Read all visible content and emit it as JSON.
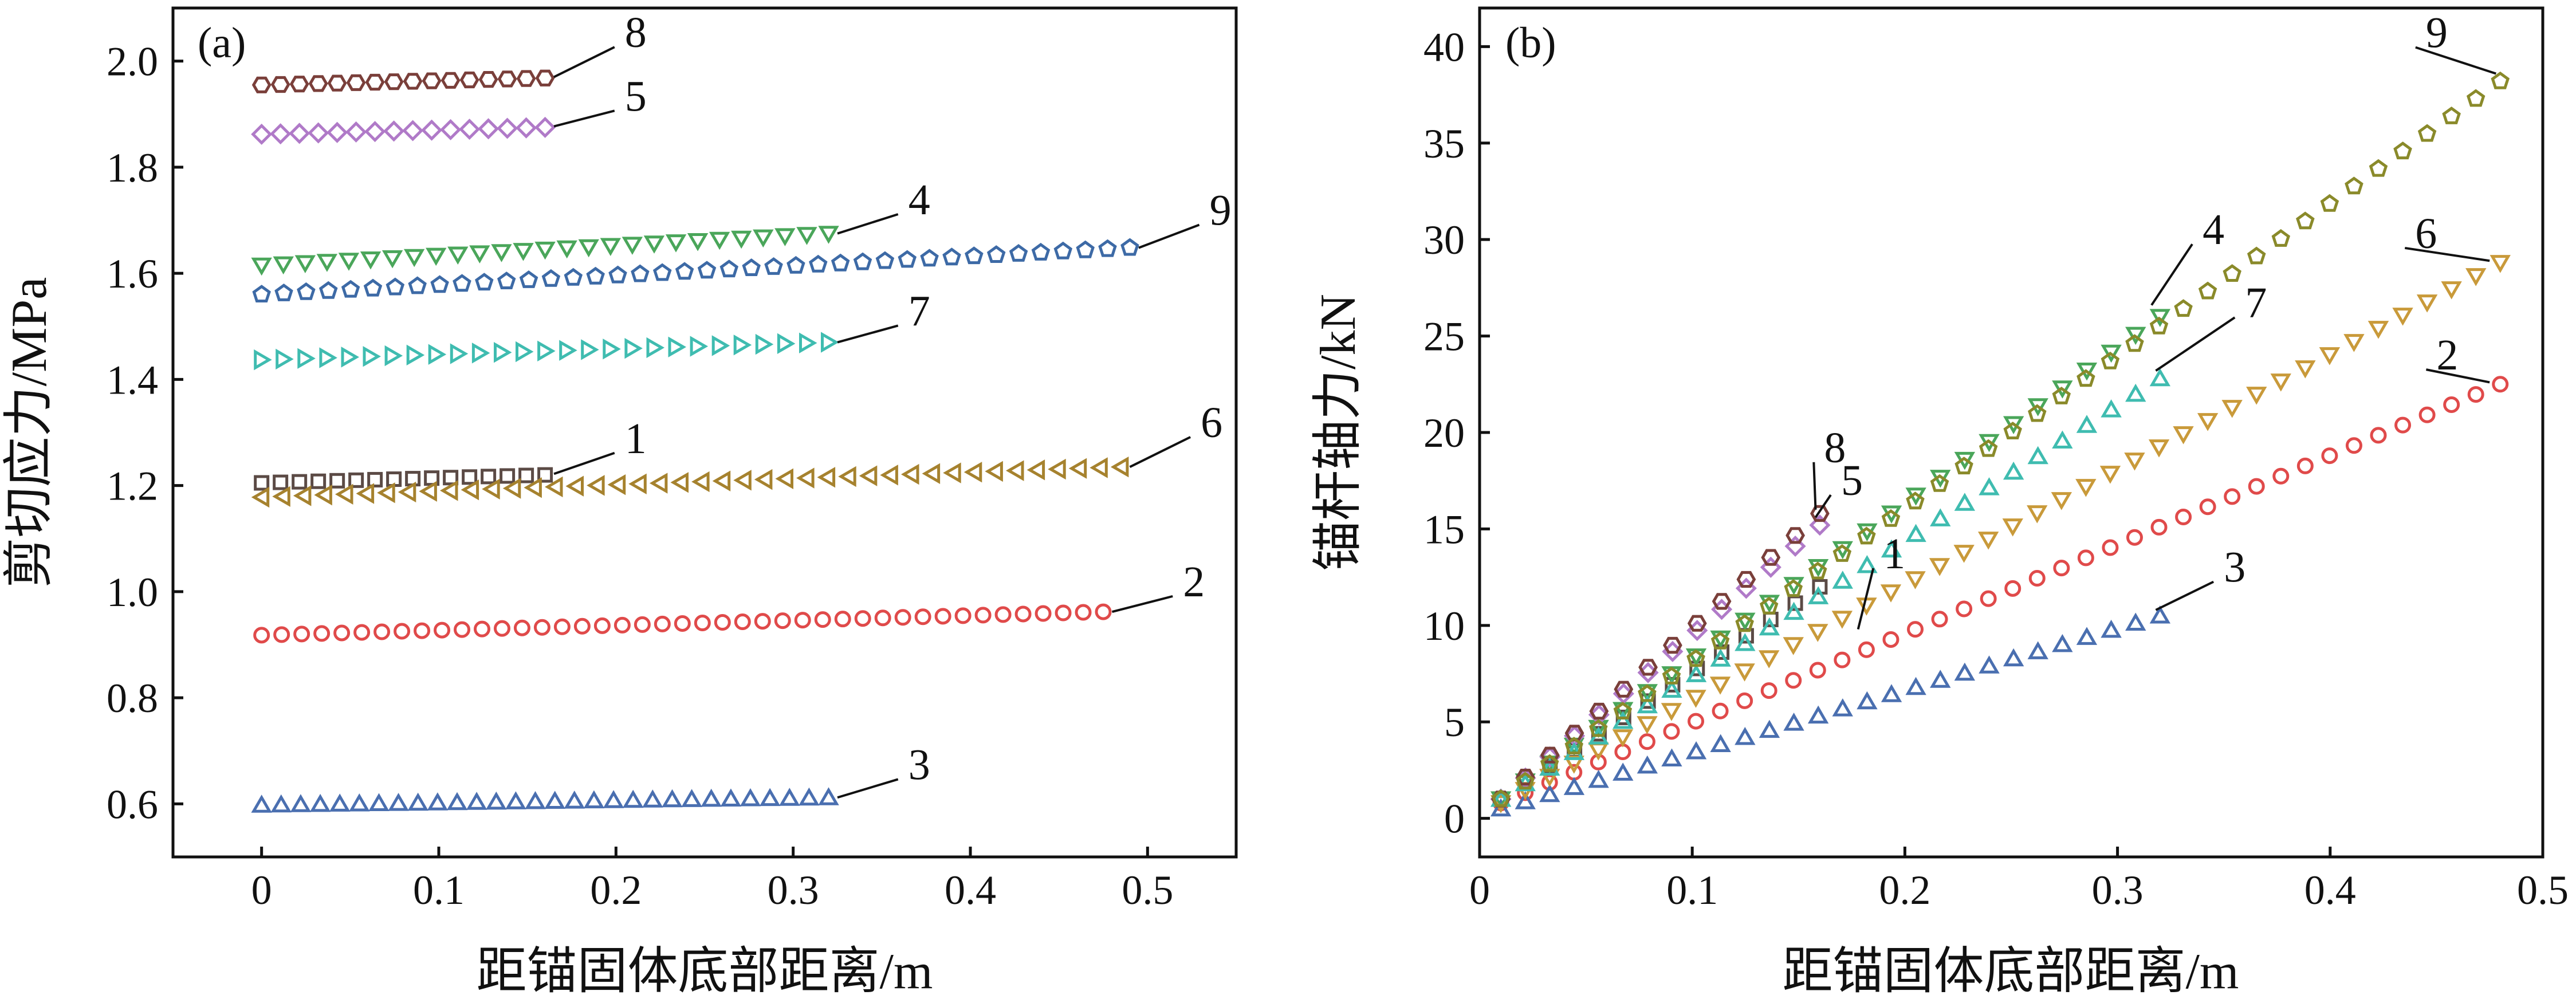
{
  "chart_data": [
    {
      "type": "scatter",
      "panel_label": "(a)",
      "xlabel": "距锚固体底部距离/m",
      "ylabel": "剪切应力/MPa",
      "xlim": [
        -0.05,
        0.55
      ],
      "ylim": [
        0.5,
        2.1
      ],
      "x_ticks": [
        0,
        0.1,
        0.2,
        0.3,
        0.4,
        0.5
      ],
      "x_tick_labels": [
        "0",
        "0.1",
        "0.2",
        "0.3",
        "0.4",
        "0.5"
      ],
      "y_ticks": [
        0.6,
        0.8,
        1.0,
        1.2,
        1.4,
        1.6,
        1.8,
        2.0
      ],
      "y_tick_labels": [
        "0.6",
        "0.8",
        "1.0",
        "1.2",
        "1.4",
        "1.6",
        "1.8",
        "2.0"
      ],
      "series": [
        {
          "name": "1",
          "marker": "square",
          "color": "#5b4a45",
          "x_start": 0.0,
          "x_end": 0.16,
          "points": 16,
          "y_start": 1.205,
          "y_end": 1.22,
          "label_anchor": [
            0.165,
            1.222
          ],
          "label_pos": [
            0.205,
            1.27
          ]
        },
        {
          "name": "2",
          "marker": "circle",
          "color": "#e04a4a",
          "x_start": 0.0,
          "x_end": 0.475,
          "points": 43,
          "y_start": 0.918,
          "y_end": 0.962,
          "label_anchor": [
            0.48,
            0.962
          ],
          "label_pos": [
            0.52,
            1.0
          ]
        },
        {
          "name": "3",
          "marker": "triangle-up",
          "color": "#4a6fb0",
          "x_start": 0.0,
          "x_end": 0.32,
          "points": 30,
          "y_start": 0.598,
          "y_end": 0.612,
          "label_anchor": [
            0.325,
            0.612
          ],
          "label_pos": [
            0.365,
            0.655
          ]
        },
        {
          "name": "4",
          "marker": "triangle-down",
          "color": "#4aa65a",
          "x_start": 0.0,
          "x_end": 0.32,
          "points": 27,
          "y_start": 1.615,
          "y_end": 1.675,
          "label_anchor": [
            0.325,
            1.675
          ],
          "label_pos": [
            0.365,
            1.72
          ]
        },
        {
          "name": "5",
          "marker": "diamond",
          "color": "#b07ac8",
          "x_start": 0.0,
          "x_end": 0.16,
          "points": 16,
          "y_start": 1.862,
          "y_end": 1.875,
          "label_anchor": [
            0.165,
            1.877
          ],
          "label_pos": [
            0.205,
            1.915
          ]
        },
        {
          "name": "6",
          "marker": "triangle-left",
          "color": "#a6822e",
          "x_start": 0.0,
          "x_end": 0.485,
          "points": 42,
          "y_start": 1.178,
          "y_end": 1.235,
          "label_anchor": [
            0.49,
            1.235
          ],
          "label_pos": [
            0.53,
            1.3
          ]
        },
        {
          "name": "7",
          "marker": "triangle-right",
          "color": "#3fbcb0",
          "x_start": 0.0,
          "x_end": 0.32,
          "points": 27,
          "y_start": 1.437,
          "y_end": 1.47,
          "label_anchor": [
            0.325,
            1.47
          ],
          "label_pos": [
            0.365,
            1.51
          ]
        },
        {
          "name": "8",
          "marker": "hexagon",
          "color": "#7a3f3a",
          "x_start": 0.0,
          "x_end": 0.16,
          "points": 16,
          "y_start": 1.955,
          "y_end": 1.968,
          "label_anchor": [
            0.165,
            1.97
          ],
          "label_pos": [
            0.205,
            2.035
          ]
        },
        {
          "name": "9",
          "marker": "pentagon",
          "color": "#3d6aa6",
          "x_start": 0.0,
          "x_end": 0.49,
          "points": 40,
          "y_start": 1.56,
          "y_end": 1.648,
          "label_anchor": [
            0.495,
            1.648
          ],
          "label_pos": [
            0.535,
            1.7
          ]
        }
      ]
    },
    {
      "type": "scatter",
      "panel_label": "(b)",
      "xlabel": "距锚固体底部距离/m",
      "ylabel": "锚杆轴力/kN",
      "xlim": [
        0,
        0.5
      ],
      "ylim": [
        -2,
        42
      ],
      "x_ticks": [
        0,
        0.1,
        0.2,
        0.3,
        0.4,
        0.5
      ],
      "x_tick_labels": [
        "0",
        "0.1",
        "0.2",
        "0.3",
        "0.4",
        "0.5"
      ],
      "y_ticks": [
        0,
        5,
        10,
        15,
        20,
        25,
        30,
        35,
        40
      ],
      "y_tick_labels": [
        "0",
        "5",
        "10",
        "15",
        "20",
        "25",
        "30",
        "35",
        "40"
      ],
      "series": [
        {
          "name": "1",
          "marker": "square",
          "color": "#5b4a45",
          "x_start": 0.01,
          "x_end": 0.16,
          "points": 14,
          "y_start": 1.0,
          "y_end": 12.0
        },
        {
          "name": "2",
          "marker": "circle",
          "color": "#e04a4a",
          "x_start": 0.01,
          "x_end": 0.48,
          "points": 42,
          "y_start": 0.8,
          "y_end": 22.5,
          "label_anchor": [
            0.475,
            22.6
          ],
          "label_pos": [
            0.45,
            23.5
          ]
        },
        {
          "name": "3",
          "marker": "triangle-up",
          "color": "#4a6fb0",
          "x_start": 0.01,
          "x_end": 0.32,
          "points": 28,
          "y_start": 0.5,
          "y_end": 10.5,
          "label_anchor": [
            0.318,
            10.8
          ],
          "label_pos": [
            0.35,
            12.5
          ]
        },
        {
          "name": "4",
          "marker": "triangle-down",
          "color": "#4aa65a",
          "x_start": 0.01,
          "x_end": 0.32,
          "points": 28,
          "y_start": 1.0,
          "y_end": 26.0,
          "label_anchor": [
            0.316,
            26.6
          ],
          "label_pos": [
            0.34,
            30.0
          ]
        },
        {
          "name": "5",
          "marker": "diamond",
          "color": "#b07ac8",
          "x_start": 0.01,
          "x_end": 0.16,
          "points": 14,
          "y_start": 1.0,
          "y_end": 15.2,
          "label_anchor": [
            0.158,
            15.6
          ],
          "label_pos": [
            0.17,
            17.0
          ]
        },
        {
          "name": "6",
          "marker": "triangle-down",
          "color": "#c99a3a",
          "x_start": 0.01,
          "x_end": 0.48,
          "points": 42,
          "y_start": 0.8,
          "y_end": 28.8,
          "label_anchor": [
            0.475,
            28.9
          ],
          "label_pos": [
            0.44,
            29.8
          ]
        },
        {
          "name": "7",
          "marker": "triangle-up",
          "color": "#3fbcb0",
          "x_start": 0.01,
          "x_end": 0.32,
          "points": 28,
          "y_start": 1.0,
          "y_end": 22.8,
          "label_anchor": [
            0.318,
            23.2
          ],
          "label_pos": [
            0.36,
            26.2
          ]
        },
        {
          "name": "8",
          "marker": "hexagon",
          "color": "#7a3f3a",
          "x_start": 0.01,
          "x_end": 0.16,
          "points": 14,
          "y_start": 1.0,
          "y_end": 15.8,
          "label_anchor": [
            0.158,
            16.0
          ],
          "label_pos": [
            0.162,
            18.7
          ]
        },
        {
          "name": "9",
          "marker": "pentagon",
          "color": "#8a8a2a",
          "x_start": 0.01,
          "x_end": 0.48,
          "points": 42,
          "y_start": 1.0,
          "y_end": 38.2,
          "label_anchor": [
            0.478,
            38.6
          ],
          "label_pos": [
            0.445,
            40.2
          ]
        }
      ],
      "extra_labels": [
        {
          "name": "1",
          "anchor": [
            0.178,
            9.8
          ],
          "pos": [
            0.19,
            13.2
          ]
        }
      ]
    }
  ]
}
